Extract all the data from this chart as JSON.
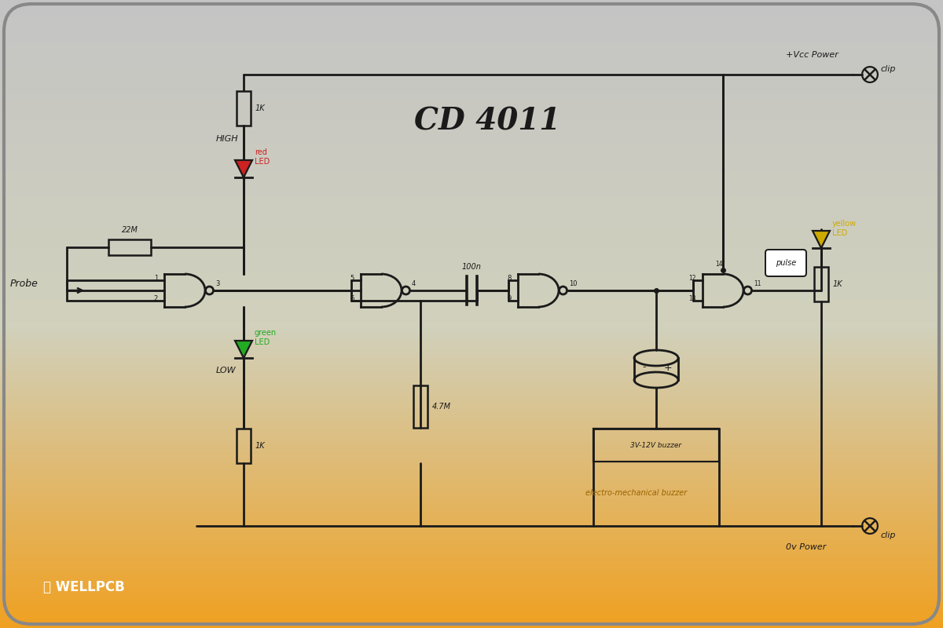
{
  "title": "CD 4011",
  "bg_top_color": "#c5c5c5",
  "bg_bottom_color": "#f0a020",
  "bg_mid_color": "#d0d0bc",
  "line_color": "#1a1a1a",
  "line_width": 2.0,
  "red_led_color": "#cc2222",
  "green_led_color": "#22aa22",
  "yellow_led_color": "#ccaa00",
  "component_labels": {
    "r22m": "22M",
    "r1k_top": "1K",
    "r1k_bot": "1K",
    "r100n": "100n",
    "r47m": "4.7M",
    "r1k_led": "1K",
    "probe": "Probe",
    "vcc": "+Vcc Power",
    "vcc_clip": "clip",
    "gnd": "0v Power",
    "gnd_clip": "clip",
    "high": "HIGH",
    "low": "LOW",
    "red_led": "red\nLED",
    "green_led": "green\nLED",
    "yellow_led": "yellow\nLED",
    "buzzer_label": "3V-12V buzzer",
    "buzzer_sub": "electro-mechanical buzzer",
    "pulse": "pulse",
    "cd4011": "CD 4011",
    "wellpcb": "WELLPCB"
  }
}
